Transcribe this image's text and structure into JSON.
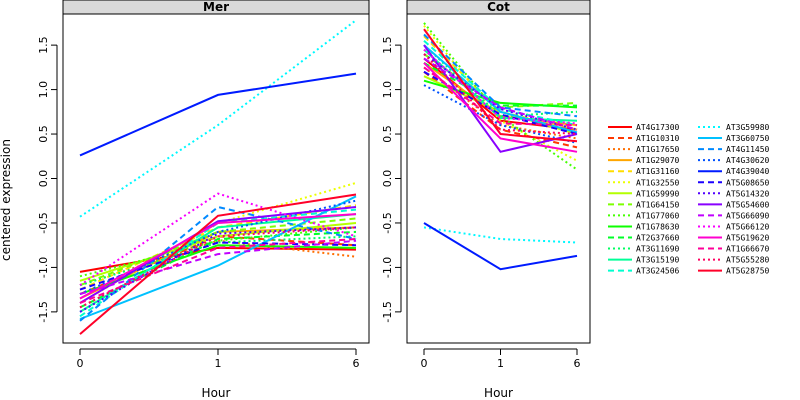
{
  "chart_data": {
    "type": "line",
    "ylabel": "centered expression",
    "xlabel": "Hour",
    "x": [
      "0",
      "1",
      "6"
    ],
    "ylim": [
      -1.85,
      1.85
    ],
    "yticks": [
      -1.5,
      -1.0,
      -0.5,
      0.0,
      0.5,
      1.0,
      1.5
    ],
    "ytick_labels": [
      "-1.5",
      "-1.0",
      "-0.5",
      "0.0",
      "0.5",
      "1.0",
      "1.5"
    ],
    "panels": [
      {
        "title": "Mer",
        "series": [
          {
            "name": "AT4G17300",
            "values": [
              -1.05,
              -0.78,
              -0.8
            ]
          },
          {
            "name": "AT1G10310",
            "values": [
              -1.3,
              -0.65,
              -0.75
            ]
          },
          {
            "name": "AT1G17650",
            "values": [
              -1.2,
              -0.7,
              -0.88
            ]
          },
          {
            "name": "AT1G29070",
            "values": [
              -1.35,
              -0.6,
              -0.55
            ]
          },
          {
            "name": "AT1G31160",
            "values": [
              -1.25,
              -0.55,
              -0.3
            ]
          },
          {
            "name": "AT1G32550",
            "values": [
              -1.4,
              -0.5,
              -0.05
            ]
          },
          {
            "name": "AT1G59990",
            "values": [
              -1.15,
              -0.65,
              -0.5
            ]
          },
          {
            "name": "AT1G64150",
            "values": [
              -1.2,
              -0.6,
              -0.45
            ]
          },
          {
            "name": "AT1G77060",
            "values": [
              -1.1,
              -0.7,
              -0.55
            ]
          },
          {
            "name": "AT1G78630",
            "values": [
              -1.3,
              -0.75,
              -0.78
            ]
          },
          {
            "name": "AT2G37660",
            "values": [
              -1.45,
              -0.68,
              -0.6
            ]
          },
          {
            "name": "AT3G11690",
            "values": [
              -1.2,
              -0.72,
              -0.65
            ]
          },
          {
            "name": "AT3G15190",
            "values": [
              -1.5,
              -0.55,
              -0.4
            ]
          },
          {
            "name": "AT3G24506",
            "values": [
              -1.55,
              -0.5,
              -0.35
            ]
          },
          {
            "name": "AT3G59980",
            "values": [
              -0.43,
              0.6,
              1.78
            ]
          },
          {
            "name": "AT3G60750",
            "values": [
              -1.58,
              -0.98,
              -0.2
            ]
          },
          {
            "name": "AT4G11450",
            "values": [
              -1.6,
              -0.32,
              -0.68
            ]
          },
          {
            "name": "AT4G30620",
            "values": [
              -1.3,
              -0.6,
              -0.25
            ]
          },
          {
            "name": "AT4G39040",
            "values": [
              0.26,
              0.94,
              1.18
            ]
          },
          {
            "name": "AT5G08650",
            "values": [
              -1.25,
              -0.72,
              -0.75
            ]
          },
          {
            "name": "AT5G14320",
            "values": [
              -1.5,
              -0.62,
              -0.55
            ]
          },
          {
            "name": "AT5G54600",
            "values": [
              -1.4,
              -0.48,
              -0.32
            ]
          },
          {
            "name": "AT5G66090",
            "values": [
              -1.3,
              -0.85,
              -0.7
            ]
          },
          {
            "name": "AT5G66120",
            "values": [
              -1.2,
              -0.17,
              -0.65
            ]
          },
          {
            "name": "AT5G19620",
            "values": [
              -1.35,
              -0.5,
              -0.4
            ]
          },
          {
            "name": "AT1G66670",
            "values": [
              -1.4,
              -0.78,
              -0.68
            ]
          },
          {
            "name": "AT5G55280",
            "values": [
              -1.45,
              -0.65,
              -0.55
            ]
          },
          {
            "name": "AT5G28750",
            "values": [
              -1.75,
              -0.42,
              -0.18
            ]
          }
        ]
      },
      {
        "title": "Cot",
        "series": [
          {
            "name": "AT4G17300",
            "values": [
              1.35,
              0.65,
              0.55
            ]
          },
          {
            "name": "AT1G10310",
            "values": [
              1.2,
              0.55,
              0.35
            ]
          },
          {
            "name": "AT1G17650",
            "values": [
              1.25,
              0.6,
              0.45
            ]
          },
          {
            "name": "AT1G29070",
            "values": [
              1.3,
              0.7,
              0.6
            ]
          },
          {
            "name": "AT1G31160",
            "values": [
              1.6,
              0.75,
              0.55
            ]
          },
          {
            "name": "AT1G32550",
            "values": [
              1.72,
              0.65,
              0.2
            ]
          },
          {
            "name": "AT1G59990",
            "values": [
              1.15,
              0.75,
              0.5
            ]
          },
          {
            "name": "AT1G64150",
            "values": [
              1.4,
              0.8,
              0.85
            ]
          },
          {
            "name": "AT1G77060",
            "values": [
              1.75,
              0.7,
              0.1
            ]
          },
          {
            "name": "AT1G78630",
            "values": [
              1.1,
              0.85,
              0.8
            ]
          },
          {
            "name": "AT2G37660",
            "values": [
              1.3,
              0.82,
              0.82
            ]
          },
          {
            "name": "AT3G11690",
            "values": [
              1.5,
              0.7,
              0.75
            ]
          },
          {
            "name": "AT3G15190",
            "values": [
              1.45,
              0.68,
              0.65
            ]
          },
          {
            "name": "AT3G24506",
            "values": [
              1.55,
              0.78,
              0.6
            ]
          },
          {
            "name": "AT3G59980",
            "values": [
              -0.55,
              -0.68,
              -0.72
            ]
          },
          {
            "name": "AT3G60750",
            "values": [
              1.5,
              0.75,
              0.52
            ]
          },
          {
            "name": "AT4G11450",
            "values": [
              1.62,
              0.8,
              0.7
            ]
          },
          {
            "name": "AT4G30620",
            "values": [
              1.05,
              0.6,
              0.4
            ]
          },
          {
            "name": "AT4G39040",
            "values": [
              -0.5,
              -1.02,
              -0.87
            ]
          },
          {
            "name": "AT5G08650",
            "values": [
              1.2,
              0.72,
              0.5
            ]
          },
          {
            "name": "AT5G14320",
            "values": [
              1.4,
              0.78,
              0.55
            ]
          },
          {
            "name": "AT5G54600",
            "values": [
              1.5,
              0.3,
              0.5
            ]
          },
          {
            "name": "AT5G66090",
            "values": [
              1.35,
              0.8,
              0.55
            ]
          },
          {
            "name": "AT5G66120",
            "values": [
              1.45,
              0.68,
              0.62
            ]
          },
          {
            "name": "AT5G19620",
            "values": [
              1.3,
              0.45,
              0.3
            ]
          },
          {
            "name": "AT1G66670",
            "values": [
              1.25,
              0.62,
              0.6
            ]
          },
          {
            "name": "AT5G55280",
            "values": [
              1.4,
              0.55,
              0.5
            ]
          },
          {
            "name": "AT5G28750",
            "values": [
              1.68,
              0.5,
              0.42
            ]
          }
        ]
      }
    ],
    "legend": {
      "placement": "right",
      "colors": [
        "#ff0000",
        "#ff3700",
        "#ff6e00",
        "#ffa600",
        "#ffdd00",
        "#ebff00",
        "#b4ff00",
        "#7cff00",
        "#45ff00",
        "#0eff00",
        "#00ff29",
        "#00ff60",
        "#00ff98",
        "#00ffcf",
        "#00f8ff",
        "#00c1ff",
        "#0089ff",
        "#0052ff",
        "#001bff",
        "#1b00ff",
        "#5200ff",
        "#8900ff",
        "#c100ff",
        "#f800ff",
        "#ff00cf",
        "#ff0098",
        "#ff0060",
        "#ff0029"
      ],
      "dash": [
        "solid",
        "dashed",
        "dotted",
        "solid",
        "dashed",
        "dotted",
        "solid",
        "dashed",
        "dotted",
        "solid",
        "dashed",
        "dotted",
        "solid",
        "dashed",
        "dotted",
        "solid",
        "dashed",
        "dotted",
        "solid",
        "dashed",
        "dotted",
        "solid",
        "dashed",
        "dotted",
        "solid",
        "dashed",
        "dotted",
        "solid"
      ]
    }
  }
}
